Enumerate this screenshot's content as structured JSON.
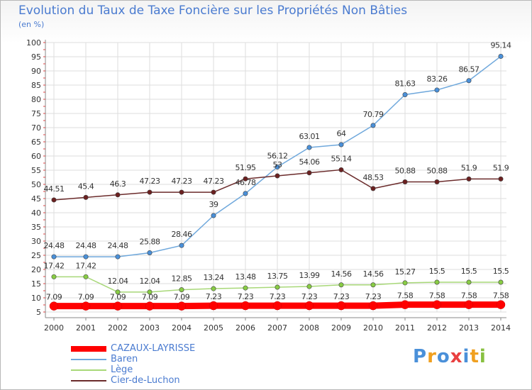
{
  "chart_data": {
    "type": "line",
    "title": "Evolution du Taux de Taxe Foncière sur les Propriétés Non Bâties",
    "ylabel": "(en %)",
    "xlabel": "",
    "ylim": [
      5,
      100
    ],
    "yticks": [
      "5",
      "10",
      "15",
      "20",
      "25",
      "30",
      "35",
      "40",
      "45",
      "50",
      "55",
      "60",
      "65",
      "70",
      "75",
      "80",
      "85",
      "90",
      "95",
      "100"
    ],
    "categories": [
      "2000",
      "2001",
      "2002",
      "2003",
      "2004",
      "2005",
      "2006",
      "2007",
      "2008",
      "2009",
      "2010",
      "2011",
      "2012",
      "2013",
      "2014"
    ],
    "grid": true,
    "series": [
      {
        "name": "CAZAUX-LAYRISSE",
        "color": "#ff0000",
        "values": [
          7.09,
          7.09,
          7.09,
          7.09,
          7.09,
          7.23,
          7.23,
          7.23,
          7.23,
          7.23,
          7.23,
          7.58,
          7.58,
          7.58,
          7.58
        ],
        "labels": [
          "7.09",
          "7.09",
          "7.09",
          "7.09",
          "7.09",
          "7.23",
          "7.23",
          "7.23",
          "7.23",
          "7.23",
          "7.23",
          "7.58",
          "7.58",
          "7.58",
          "7.58"
        ]
      },
      {
        "name": "Baren",
        "color": "#6fa8dc",
        "values": [
          24.48,
          24.48,
          24.48,
          25.88,
          28.46,
          39,
          46.78,
          56.12,
          63.01,
          64,
          70.79,
          81.63,
          83.26,
          86.57,
          95.14
        ],
        "labels": [
          "24.48",
          "24.48",
          "24.48",
          "25.88",
          "28.46",
          "39",
          "46.78",
          "56.12",
          "63.01",
          "64",
          "70.79",
          "81.63",
          "83.26",
          "86.57",
          "95.14"
        ]
      },
      {
        "name": "Lège",
        "color": "#a8d878",
        "values": [
          17.42,
          17.42,
          12.04,
          12.04,
          12.85,
          13.24,
          13.48,
          13.75,
          13.99,
          14.56,
          14.56,
          15.27,
          15.5,
          15.5,
          15.5
        ],
        "labels": [
          "17.42",
          "17.42",
          "12.04",
          "12.04",
          "12.85",
          "13.24",
          "13.48",
          "13.75",
          "13.99",
          "14.56",
          "14.56",
          "15.27",
          "15.5",
          "15.5",
          "15.5"
        ]
      },
      {
        "name": "Cier-de-Luchon",
        "color": "#6b2b2b",
        "values": [
          44.51,
          45.4,
          46.3,
          47.23,
          47.23,
          47.23,
          51.95,
          53,
          54.06,
          55.14,
          48.53,
          50.88,
          50.88,
          51.9,
          51.9
        ],
        "labels": [
          "44.51",
          "45.4",
          "46.3",
          "47.23",
          "47.23",
          "47.23",
          "51.95",
          "53",
          "54.06",
          "55.14",
          "48.53",
          "50.88",
          "50.88",
          "51.9",
          "51.9"
        ]
      }
    ],
    "legend_position": "bottom-left"
  },
  "logo": {
    "letters": [
      "P",
      "r",
      "o",
      "x",
      "i",
      "t",
      "i"
    ],
    "colors": [
      "#4a90d9",
      "#f0a020",
      "#4a90d9",
      "#e94040",
      "#4a90d9",
      "#f0a020",
      "#88c040"
    ]
  }
}
